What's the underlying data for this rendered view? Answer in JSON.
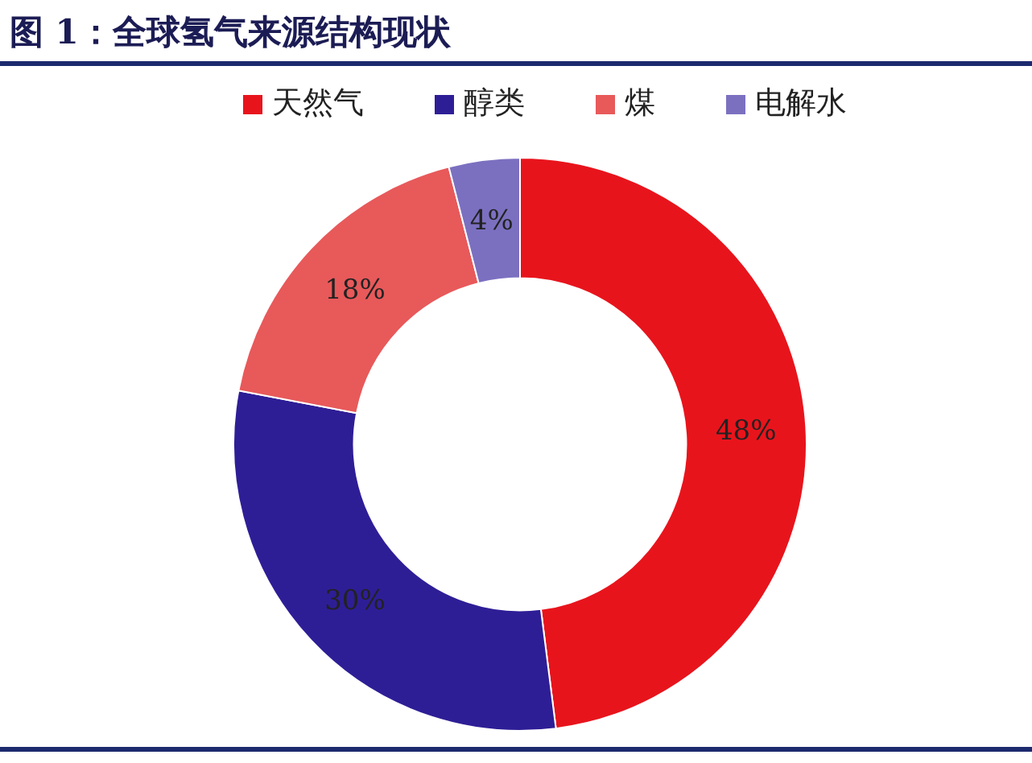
{
  "chart_data": {
    "type": "donut",
    "title": "图 1：全球氢气来源结构现状",
    "categories": [
      "天然气",
      "醇类",
      "煤",
      "电解水"
    ],
    "values": [
      48,
      30,
      18,
      4
    ],
    "colors": [
      "#e8141c",
      "#2e1e96",
      "#e8595a",
      "#7b70c0"
    ],
    "value_labels": [
      "48%",
      "30%",
      "18%",
      "4%"
    ],
    "legend": "top"
  }
}
